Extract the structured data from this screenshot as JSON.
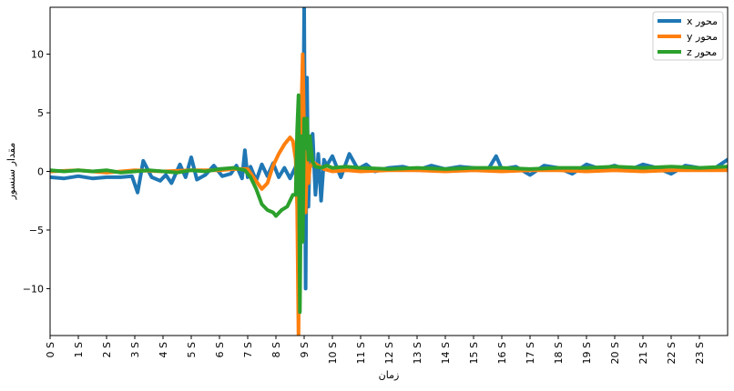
{
  "chart_data": {
    "type": "line",
    "title": "",
    "xlabel": "زمان",
    "ylabel": "مقدار سنسور",
    "xlim": [
      0,
      24
    ],
    "ylim": [
      -14,
      14
    ],
    "grid": false,
    "legend_position": "top-right",
    "x_ticks": [
      0,
      1,
      2,
      3,
      4,
      5,
      6,
      7,
      8,
      9,
      10,
      11,
      12,
      13,
      14,
      15,
      16,
      17,
      18,
      19,
      20,
      21,
      22,
      23
    ],
    "x_tick_labels": [
      "0 S",
      "1 S",
      "2 S",
      "3 S",
      "4 S",
      "5 S",
      "6 S",
      "7 S",
      "8 S",
      "9 S",
      "10 S",
      "11 S",
      "12 S",
      "13 S",
      "14 S",
      "15 S",
      "16 S",
      "17 S",
      "18 S",
      "19 S",
      "20 S",
      "21 S",
      "22 S",
      "23 S"
    ],
    "y_ticks": [
      -10,
      -5,
      0,
      5,
      10
    ],
    "y_tick_labels": [
      "−10",
      "−5",
      "0",
      "5",
      "10"
    ],
    "series": [
      {
        "name": "x محور",
        "color": "#1f77b4",
        "x": [
          0,
          0.5,
          1,
          1.5,
          2,
          2.5,
          2.9,
          3.1,
          3.3,
          3.6,
          3.9,
          4.1,
          4.3,
          4.6,
          4.8,
          5.0,
          5.2,
          5.5,
          5.8,
          6.1,
          6.4,
          6.6,
          6.8,
          6.9,
          7.0,
          7.1,
          7.3,
          7.5,
          7.7,
          7.9,
          8.1,
          8.3,
          8.5,
          8.7,
          8.8,
          8.85,
          8.9,
          8.95,
          9.0,
          9.05,
          9.1,
          9.15,
          9.2,
          9.3,
          9.4,
          9.5,
          9.6,
          9.7,
          9.8,
          10.0,
          10.3,
          10.6,
          10.9,
          11.2,
          11.5,
          12,
          12.5,
          13,
          13.5,
          14,
          14.5,
          15,
          15.5,
          15.8,
          16,
          16.5,
          17,
          17.5,
          18,
          18.5,
          19,
          19.5,
          20,
          20.5,
          21,
          21.5,
          22,
          22.5,
          23,
          23.5,
          24
        ],
        "y": [
          -0.5,
          -0.6,
          -0.4,
          -0.6,
          -0.5,
          -0.5,
          -0.4,
          -1.8,
          0.9,
          -0.5,
          -0.8,
          -0.3,
          -1.0,
          0.6,
          -0.5,
          1.2,
          -0.7,
          -0.3,
          0.5,
          -0.4,
          -0.2,
          0.5,
          -0.6,
          1.8,
          -0.5,
          0.4,
          -0.8,
          0.6,
          -0.4,
          0.7,
          -0.5,
          0.3,
          -0.6,
          0.4,
          2.5,
          -5.0,
          5.0,
          -3.0,
          14.0,
          -10.0,
          8.0,
          -3.0,
          2.0,
          3.2,
          -2.0,
          1.5,
          -2.5,
          1.0,
          0.5,
          1.3,
          -0.5,
          1.5,
          0.2,
          0.6,
          0.0,
          0.3,
          0.4,
          0.1,
          0.5,
          0.2,
          0.4,
          0.3,
          0.1,
          1.3,
          0.2,
          0.4,
          -0.3,
          0.5,
          0.3,
          -0.2,
          0.6,
          0.2,
          0.5,
          0.1,
          0.6,
          0.3,
          -0.2,
          0.5,
          0.3,
          0.2,
          1.0
        ]
      },
      {
        "name": "y محور",
        "color": "#ff7f0e",
        "x": [
          0,
          1,
          2,
          3,
          4,
          5,
          6,
          6.5,
          7,
          7.2,
          7.5,
          7.7,
          7.9,
          8.1,
          8.3,
          8.5,
          8.6,
          8.7,
          8.75,
          8.8,
          8.85,
          8.9,
          8.95,
          9.0,
          9.05,
          9.1,
          9.15,
          9.2,
          9.3,
          9.5,
          9.7,
          10,
          10.5,
          11,
          12,
          13,
          14,
          15,
          16,
          17,
          18,
          19,
          20,
          21,
          22,
          23,
          24
        ],
        "y": [
          0.0,
          0.1,
          -0.1,
          0.1,
          0.0,
          0.1,
          0.1,
          0.2,
          0.2,
          -0.5,
          -1.5,
          -1.0,
          0.5,
          1.5,
          2.3,
          2.9,
          2.6,
          1.0,
          -3.0,
          -14.0,
          2.0,
          5.0,
          10.0,
          3.0,
          -3.5,
          1.5,
          -1.0,
          0.3,
          0.8,
          0.5,
          0.2,
          0.0,
          0.1,
          0.0,
          0.1,
          0.1,
          0.0,
          0.1,
          0.0,
          0.1,
          0.1,
          0.0,
          0.1,
          0.0,
          0.1,
          0.1,
          0.1
        ]
      },
      {
        "name": "z محور",
        "color": "#2ca02c",
        "x": [
          0,
          0.5,
          1,
          1.5,
          2,
          2.5,
          3,
          3.5,
          4,
          4.5,
          5,
          5.5,
          6,
          6.5,
          6.9,
          7.1,
          7.3,
          7.5,
          7.7,
          7.9,
          8.0,
          8.2,
          8.4,
          8.6,
          8.7,
          8.75,
          8.8,
          8.85,
          8.9,
          8.95,
          9.0,
          9.05,
          9.1,
          9.15,
          9.2,
          9.3,
          9.4,
          9.6,
          9.8,
          10,
          10.5,
          11,
          12,
          13,
          14,
          15,
          16,
          17,
          18,
          19,
          20,
          21,
          22,
          23,
          24
        ],
        "y": [
          0.1,
          0.0,
          0.1,
          0.0,
          0.1,
          -0.1,
          0.0,
          0.1,
          0.0,
          -0.1,
          0.1,
          0.0,
          0.2,
          0.3,
          0.1,
          -0.5,
          -1.5,
          -2.8,
          -3.3,
          -3.5,
          -3.8,
          -3.3,
          -3.0,
          -2.0,
          -2.0,
          3.5,
          6.5,
          -12.0,
          3.0,
          -6.0,
          4.5,
          2.0,
          4.5,
          1.0,
          3.0,
          0.8,
          0.4,
          0.3,
          0.5,
          0.3,
          0.4,
          0.3,
          0.2,
          0.3,
          0.2,
          0.3,
          0.3,
          0.2,
          0.3,
          0.3,
          0.4,
          0.3,
          0.4,
          0.3,
          0.4
        ]
      }
    ]
  }
}
